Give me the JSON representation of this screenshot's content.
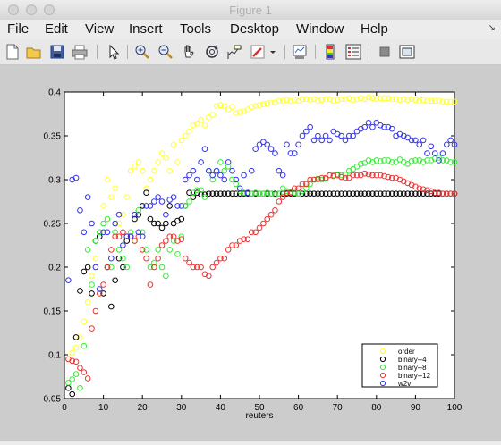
{
  "window": {
    "title": "Figure 1"
  },
  "menu": {
    "items": [
      "File",
      "Edit",
      "View",
      "Insert",
      "Tools",
      "Desktop",
      "Window",
      "Help"
    ]
  },
  "toolbar": {
    "icons": [
      "new-figure-icon",
      "open-file-icon",
      "save-icon",
      "print-icon",
      "edit-plot-arrow-icon",
      "zoom-in-icon",
      "zoom-out-icon",
      "pan-hand-icon",
      "rotate-3d-icon",
      "data-cursor-icon",
      "brush-icon",
      "brush-dropdown-icon",
      "link-plot-icon",
      "insert-colorbar-icon",
      "insert-legend-icon",
      "hide-plot-tools-icon",
      "show-plot-tools-icon"
    ]
  },
  "chart_data": {
    "type": "scatter",
    "title": "",
    "xlabel": "reuters",
    "ylabel": "",
    "xlim": [
      0,
      100
    ],
    "ylim": [
      0.05,
      0.4
    ],
    "xticks": [
      "0",
      "10",
      "20",
      "30",
      "40",
      "50",
      "60",
      "70",
      "80",
      "90",
      "100"
    ],
    "yticks": [
      "0.05",
      "0.1",
      "0.15",
      "0.2",
      "0.25",
      "0.3",
      "0.35",
      "0.4"
    ],
    "legend_position": "bottom-right",
    "marker": "circle-open",
    "series": [
      {
        "name": "order",
        "color": "#ffff33",
        "x": [
          1,
          2,
          3,
          4,
          5,
          6,
          7,
          8,
          9,
          10,
          11,
          12,
          13,
          14,
          15,
          16,
          17,
          18,
          19,
          20,
          21,
          22,
          23,
          24,
          25,
          26,
          27,
          28,
          29,
          30,
          31,
          32,
          33,
          34,
          35,
          36,
          37,
          38,
          39,
          40,
          41,
          42,
          43,
          44,
          45,
          46,
          47,
          48,
          49,
          50,
          51,
          52,
          53,
          54,
          55,
          56,
          57,
          58,
          59,
          60,
          61,
          62,
          63,
          64,
          65,
          66,
          67,
          68,
          69,
          70,
          71,
          72,
          73,
          74,
          75,
          76,
          77,
          78,
          79,
          80,
          81,
          82,
          83,
          84,
          85,
          86,
          87,
          88,
          89,
          90,
          91,
          92,
          93,
          94,
          95,
          96,
          97,
          98,
          99,
          100
        ],
        "y": [
          0.095,
          0.102,
          0.108,
          0.12,
          0.138,
          0.16,
          0.19,
          0.21,
          0.24,
          0.27,
          0.3,
          0.28,
          0.29,
          0.25,
          0.26,
          0.28,
          0.31,
          0.315,
          0.32,
          0.31,
          0.29,
          0.3,
          0.31,
          0.32,
          0.33,
          0.325,
          0.31,
          0.34,
          0.32,
          0.345,
          0.35,
          0.355,
          0.362,
          0.364,
          0.368,
          0.362,
          0.371,
          0.374,
          0.384,
          0.385,
          0.384,
          0.38,
          0.383,
          0.376,
          0.377,
          0.378,
          0.38,
          0.383,
          0.384,
          0.385,
          0.386,
          0.387,
          0.388,
          0.388,
          0.39,
          0.39,
          0.391,
          0.39,
          0.391,
          0.39,
          0.392,
          0.392,
          0.391,
          0.392,
          0.39,
          0.391,
          0.392,
          0.392,
          0.39,
          0.391,
          0.392,
          0.392,
          0.393,
          0.391,
          0.392,
          0.393,
          0.392,
          0.394,
          0.393,
          0.392,
          0.393,
          0.393,
          0.393,
          0.392,
          0.392,
          0.391,
          0.392,
          0.391,
          0.392,
          0.391,
          0.39,
          0.391,
          0.39,
          0.39,
          0.39,
          0.39,
          0.389,
          0.389,
          0.389,
          0.389
        ]
      },
      {
        "name": "binary--4",
        "color": "#000000",
        "x": [
          1,
          2,
          3,
          4,
          5,
          6,
          7,
          8,
          9,
          10,
          11,
          12,
          13,
          14,
          15,
          16,
          17,
          18,
          19,
          20,
          21,
          22,
          23,
          24,
          25,
          26,
          27,
          28,
          29,
          30,
          31,
          32,
          33,
          34,
          35,
          36,
          37,
          38,
          39,
          40,
          41,
          42,
          43,
          44,
          45,
          46,
          47,
          48,
          49,
          50,
          51,
          52,
          53,
          54,
          55,
          56,
          57,
          58,
          59,
          60,
          61,
          62,
          63,
          64,
          65,
          66,
          67,
          68,
          69,
          70,
          71,
          72,
          73,
          74,
          75,
          76,
          77,
          78,
          79,
          80,
          81,
          82,
          83,
          84,
          85,
          86,
          87,
          88,
          89,
          90,
          91,
          92,
          93,
          94,
          95,
          96,
          97,
          98,
          99,
          100
        ],
        "y": [
          0.062,
          0.055,
          0.12,
          0.173,
          0.195,
          0.2,
          0.17,
          0.23,
          0.235,
          0.17,
          0.2,
          0.155,
          0.185,
          0.21,
          0.2,
          0.23,
          0.235,
          0.255,
          0.26,
          0.27,
          0.285,
          0.255,
          0.25,
          0.25,
          0.245,
          0.25,
          0.27,
          0.25,
          0.253,
          0.255,
          0.27,
          0.285,
          0.28,
          0.285,
          0.283,
          0.283,
          0.284,
          0.284,
          0.284,
          0.284,
          0.284,
          0.284,
          0.284,
          0.284,
          0.284,
          0.284,
          0.284,
          0.284,
          0.284,
          0.284,
          0.284,
          0.284,
          0.284,
          0.284,
          0.284,
          0.284,
          0.284,
          0.284,
          0.284,
          0.284,
          0.284,
          0.284,
          0.284,
          0.284,
          0.284,
          0.284,
          0.284,
          0.284,
          0.284,
          0.284,
          0.284,
          0.284,
          0.284,
          0.284,
          0.284,
          0.284,
          0.284,
          0.284,
          0.284,
          0.284,
          0.284,
          0.284,
          0.284,
          0.284,
          0.284,
          0.284,
          0.284,
          0.284,
          0.284,
          0.284,
          0.284,
          0.284,
          0.284,
          0.284,
          0.284,
          0.284,
          0.284,
          0.284,
          0.284,
          0.284
        ]
      },
      {
        "name": "binary--8",
        "color": "#33ee33",
        "x": [
          1,
          2,
          3,
          4,
          5,
          6,
          7,
          8,
          9,
          10,
          11,
          12,
          13,
          14,
          15,
          16,
          17,
          18,
          19,
          20,
          21,
          22,
          23,
          24,
          25,
          26,
          27,
          28,
          29,
          30,
          31,
          32,
          33,
          34,
          35,
          36,
          37,
          38,
          39,
          40,
          41,
          42,
          43,
          44,
          45,
          46,
          47,
          48,
          49,
          50,
          51,
          52,
          53,
          54,
          55,
          56,
          57,
          58,
          59,
          60,
          61,
          62,
          63,
          64,
          65,
          66,
          67,
          68,
          69,
          70,
          71,
          72,
          73,
          74,
          75,
          76,
          77,
          78,
          79,
          80,
          81,
          82,
          83,
          84,
          85,
          86,
          87,
          88,
          89,
          90,
          91,
          92,
          93,
          94,
          95,
          96,
          97,
          98,
          99,
          100
        ],
        "y": [
          0.068,
          0.072,
          0.078,
          0.062,
          0.11,
          0.22,
          0.18,
          0.23,
          0.24,
          0.25,
          0.255,
          0.2,
          0.24,
          0.22,
          0.21,
          0.2,
          0.24,
          0.23,
          0.265,
          0.24,
          0.22,
          0.2,
          0.205,
          0.22,
          0.2,
          0.19,
          0.22,
          0.23,
          0.215,
          0.235,
          0.27,
          0.275,
          0.285,
          0.288,
          0.288,
          0.28,
          0.31,
          0.3,
          0.31,
          0.32,
          0.31,
          0.315,
          0.3,
          0.295,
          0.287,
          0.285,
          0.285,
          0.284,
          0.285,
          0.284,
          0.284,
          0.285,
          0.284,
          0.283,
          0.284,
          0.29,
          0.287,
          0.286,
          0.285,
          0.284,
          0.287,
          0.29,
          0.295,
          0.3,
          0.3,
          0.3,
          0.301,
          0.305,
          0.305,
          0.306,
          0.305,
          0.306,
          0.31,
          0.312,
          0.315,
          0.318,
          0.319,
          0.322,
          0.32,
          0.322,
          0.321,
          0.322,
          0.322,
          0.32,
          0.32,
          0.323,
          0.32,
          0.318,
          0.321,
          0.322,
          0.322,
          0.32,
          0.322,
          0.322,
          0.324,
          0.325,
          0.322,
          0.322,
          0.32,
          0.32
        ]
      },
      {
        "name": "binary--12",
        "color": "#ee3333",
        "x": [
          1,
          2,
          3,
          4,
          5,
          6,
          7,
          8,
          9,
          10,
          11,
          12,
          13,
          14,
          15,
          16,
          17,
          18,
          19,
          20,
          21,
          22,
          23,
          24,
          25,
          26,
          27,
          28,
          29,
          30,
          31,
          32,
          33,
          34,
          35,
          36,
          37,
          38,
          39,
          40,
          41,
          42,
          43,
          44,
          45,
          46,
          47,
          48,
          49,
          50,
          51,
          52,
          53,
          54,
          55,
          56,
          57,
          58,
          59,
          60,
          61,
          62,
          63,
          64,
          65,
          66,
          67,
          68,
          69,
          70,
          71,
          72,
          73,
          74,
          75,
          76,
          77,
          78,
          79,
          80,
          81,
          82,
          83,
          84,
          85,
          86,
          87,
          88,
          89,
          90,
          91,
          92,
          93,
          94,
          95,
          96,
          97,
          98,
          99,
          100
        ],
        "y": [
          0.095,
          0.093,
          0.092,
          0.085,
          0.08,
          0.073,
          0.13,
          0.15,
          0.17,
          0.18,
          0.2,
          0.22,
          0.235,
          0.235,
          0.24,
          0.235,
          0.235,
          0.23,
          0.235,
          0.22,
          0.21,
          0.18,
          0.2,
          0.21,
          0.225,
          0.23,
          0.235,
          0.235,
          0.23,
          0.232,
          0.21,
          0.205,
          0.2,
          0.2,
          0.2,
          0.192,
          0.19,
          0.2,
          0.205,
          0.21,
          0.21,
          0.22,
          0.225,
          0.225,
          0.23,
          0.232,
          0.232,
          0.24,
          0.24,
          0.245,
          0.25,
          0.255,
          0.26,
          0.265,
          0.275,
          0.28,
          0.285,
          0.285,
          0.29,
          0.29,
          0.295,
          0.295,
          0.3,
          0.3,
          0.301,
          0.302,
          0.302,
          0.305,
          0.304,
          0.305,
          0.303,
          0.302,
          0.302,
          0.305,
          0.305,
          0.305,
          0.307,
          0.306,
          0.305,
          0.305,
          0.305,
          0.304,
          0.303,
          0.302,
          0.302,
          0.3,
          0.298,
          0.296,
          0.294,
          0.292,
          0.29,
          0.289,
          0.288,
          0.287,
          0.285,
          0.285,
          0.284,
          0.284,
          0.284,
          0.284
        ]
      },
      {
        "name": "w2v",
        "color": "#3333ee",
        "x": [
          1,
          2,
          3,
          4,
          5,
          6,
          7,
          8,
          9,
          10,
          11,
          12,
          13,
          14,
          15,
          16,
          17,
          18,
          19,
          20,
          21,
          22,
          23,
          24,
          25,
          26,
          27,
          28,
          29,
          30,
          31,
          32,
          33,
          34,
          35,
          36,
          37,
          38,
          39,
          40,
          41,
          42,
          43,
          44,
          45,
          46,
          47,
          48,
          49,
          50,
          51,
          52,
          53,
          54,
          55,
          56,
          57,
          58,
          59,
          60,
          61,
          62,
          63,
          64,
          65,
          66,
          67,
          68,
          69,
          70,
          71,
          72,
          73,
          74,
          75,
          76,
          77,
          78,
          79,
          80,
          81,
          82,
          83,
          84,
          85,
          86,
          87,
          88,
          89,
          90,
          91,
          92,
          93,
          94,
          95,
          96,
          97,
          98,
          99,
          100
        ],
        "y": [
          0.185,
          0.3,
          0.302,
          0.265,
          0.24,
          0.28,
          0.25,
          0.2,
          0.175,
          0.24,
          0.24,
          0.21,
          0.25,
          0.26,
          0.225,
          0.235,
          0.235,
          0.26,
          0.24,
          0.235,
          0.27,
          0.27,
          0.275,
          0.28,
          0.275,
          0.26,
          0.277,
          0.28,
          0.27,
          0.27,
          0.3,
          0.305,
          0.31,
          0.3,
          0.32,
          0.335,
          0.31,
          0.305,
          0.31,
          0.305,
          0.3,
          0.32,
          0.31,
          0.3,
          0.29,
          0.305,
          0.285,
          0.31,
          0.335,
          0.34,
          0.343,
          0.34,
          0.335,
          0.33,
          0.31,
          0.305,
          0.34,
          0.33,
          0.33,
          0.34,
          0.35,
          0.355,
          0.36,
          0.345,
          0.35,
          0.345,
          0.35,
          0.345,
          0.355,
          0.352,
          0.35,
          0.345,
          0.35,
          0.35,
          0.355,
          0.358,
          0.36,
          0.365,
          0.36,
          0.365,
          0.362,
          0.36,
          0.36,
          0.358,
          0.35,
          0.352,
          0.35,
          0.348,
          0.345,
          0.345,
          0.34,
          0.345,
          0.33,
          0.338,
          0.33,
          0.322,
          0.33,
          0.34,
          0.345,
          0.34
        ]
      }
    ]
  }
}
